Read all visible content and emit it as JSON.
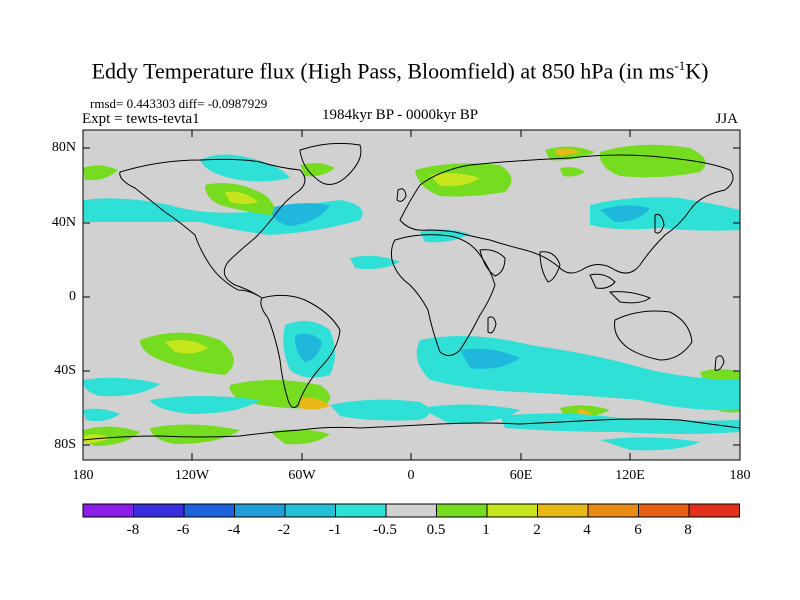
{
  "title_main": "Eddy Temperature flux (High Pass, Bloomfield) at 850 hPa (in ms",
  "title_sup": "-1",
  "title_end": "K)",
  "stats": "rmsd= 0.443303 diff= -0.0987929",
  "expt": "Expt = tewts-tevta1",
  "period": "1984kyr BP - 0000kyr BP",
  "season": "JJA",
  "lat_labels": [
    "80N",
    "40N",
    "0",
    "40S",
    "80S"
  ],
  "lon_labels": [
    "180",
    "120W",
    "60W",
    "0",
    "60E",
    "120E",
    "180"
  ],
  "colorbar": {
    "labels": [
      "-8",
      "-6",
      "-4",
      "-2",
      "-1",
      "-0.5",
      "0.5",
      "1",
      "2",
      "4",
      "6",
      "8"
    ],
    "colors": [
      "#8a1de8",
      "#3a2ddd",
      "#1d63db",
      "#1f9ed8",
      "#23c0d8",
      "#2ee0d6",
      "#d1d1d1",
      "#76dc1f",
      "#c6e51c",
      "#e8b916",
      "#e88a14",
      "#e86012",
      "#e3301d"
    ]
  },
  "map_colors": {
    "background": "#d1d1d1",
    "neg1": "#2ee0d6",
    "neg2": "#1fb8dc",
    "neg3": "#1d80dc",
    "pos1": "#76dc1f",
    "pos2": "#c6e51c",
    "pos3": "#e8b916"
  }
}
